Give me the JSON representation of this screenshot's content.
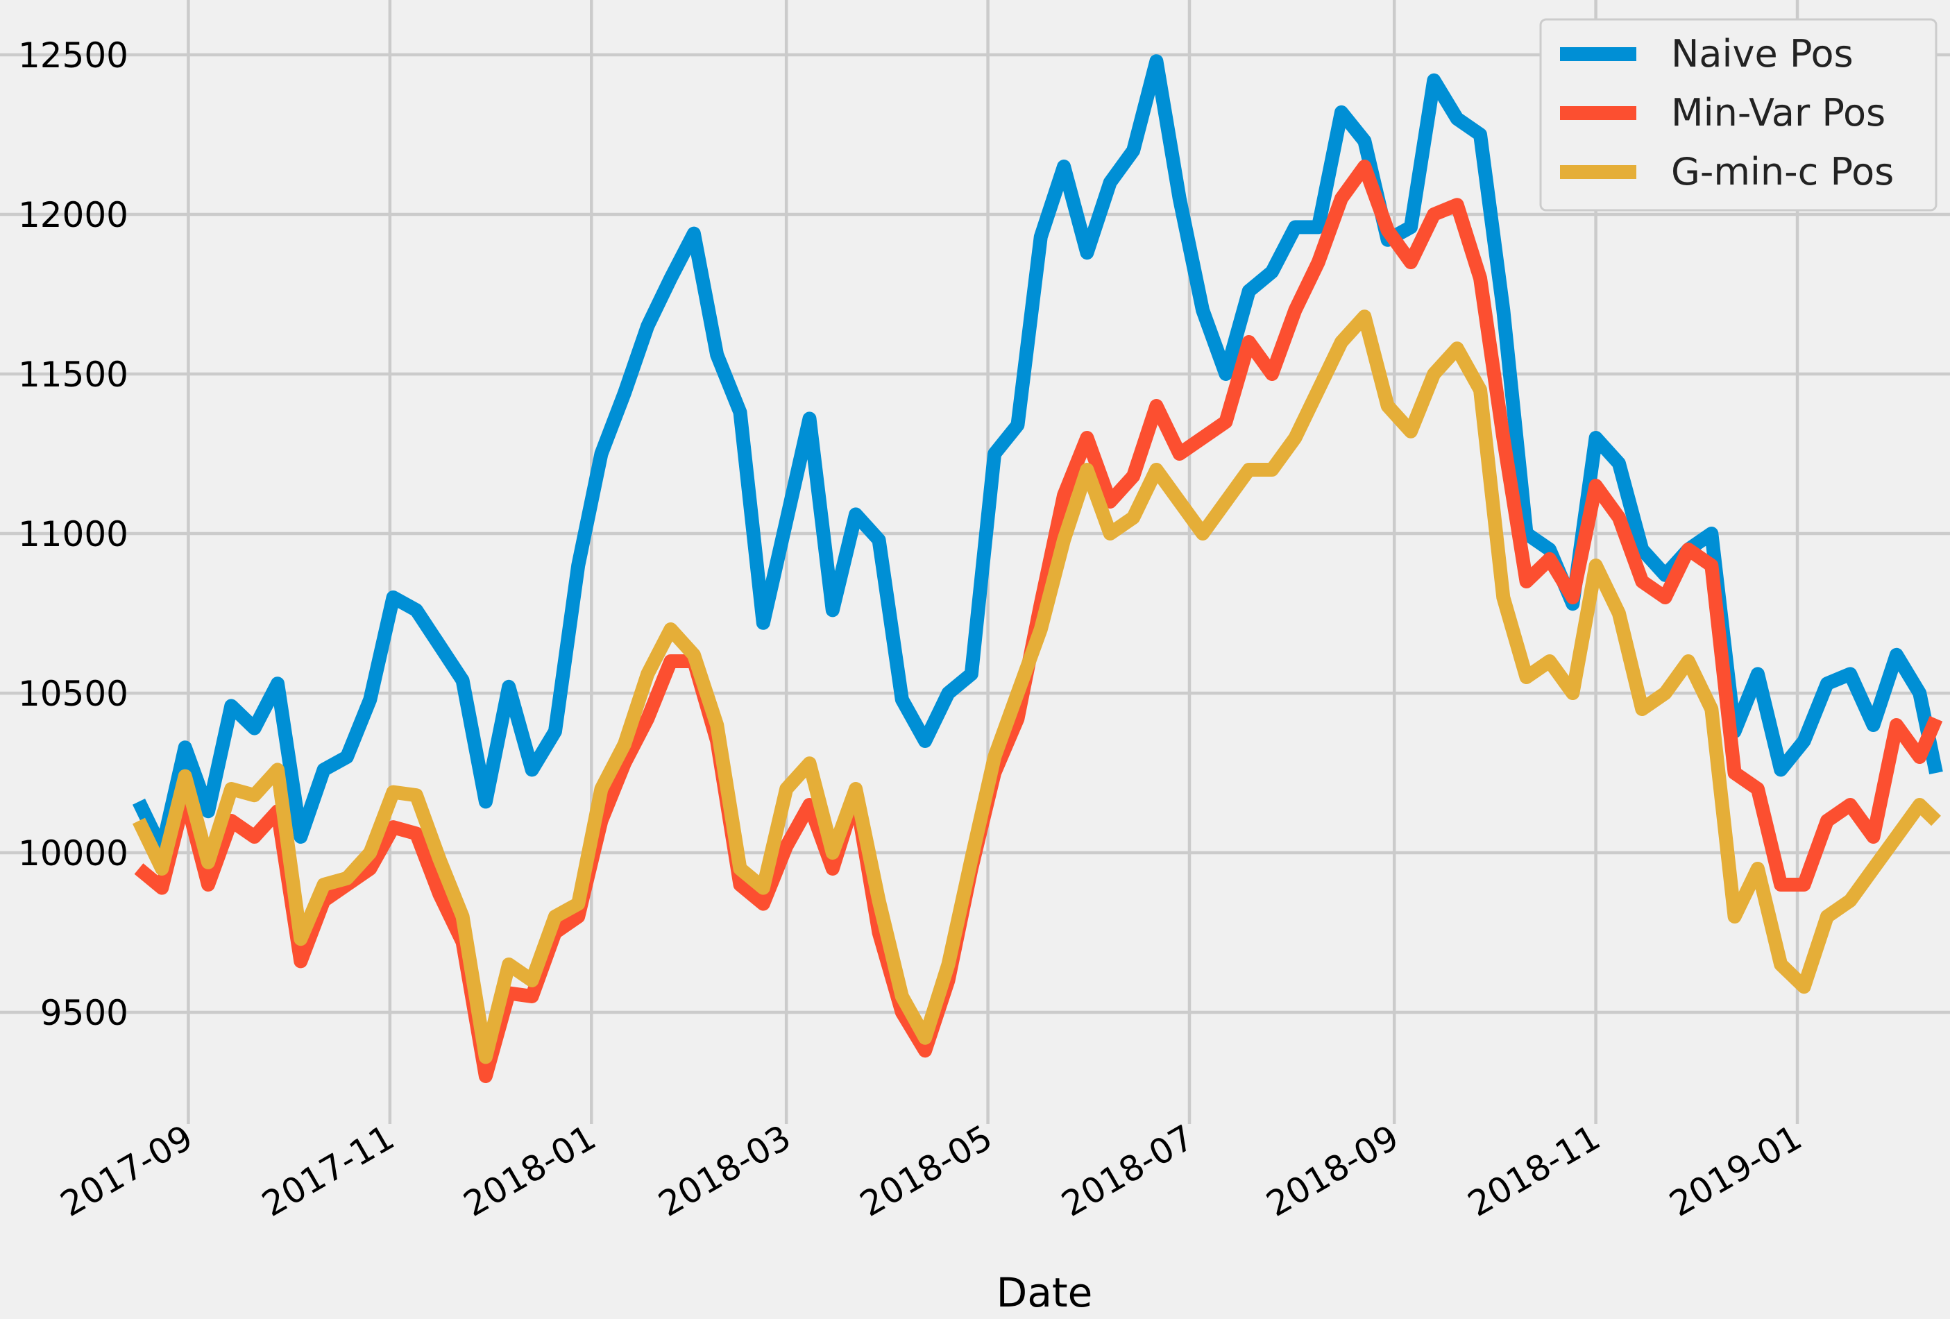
{
  "chart_data": {
    "type": "line",
    "title": "",
    "xlabel": "Date",
    "ylabel": "",
    "x_range": [
      "2017-08-17",
      "2019-02-12"
    ],
    "ylim": [
      9150,
      12650
    ],
    "grid": true,
    "legend_position": "top-right",
    "yticks": [
      9500,
      10000,
      10500,
      11000,
      11500,
      12000,
      12500
    ],
    "ytick_labels": [
      "9500",
      "10000",
      "10500",
      "11000",
      "11500",
      "12000",
      "12500"
    ],
    "xticks": [
      "2017-09-01",
      "2017-11-01",
      "2018-01-01",
      "2018-03-01",
      "2018-05-01",
      "2018-07-01",
      "2018-09-01",
      "2018-11-01",
      "2019-01-01"
    ],
    "xtick_labels": [
      "2017-09",
      "2017-11",
      "2018-01",
      "2018-03",
      "2018-05",
      "2018-07",
      "2018-09",
      "2018-11",
      "2019-01"
    ],
    "series": [
      {
        "name": "Naive Pos",
        "color": "#008fd5",
        "points": [
          [
            "2017-08-17",
            10160
          ],
          [
            "2017-08-24",
            10010
          ],
          [
            "2017-08-31",
            10330
          ],
          [
            "2017-09-07",
            10130
          ],
          [
            "2017-09-14",
            10460
          ],
          [
            "2017-09-21",
            10390
          ],
          [
            "2017-09-28",
            10530
          ],
          [
            "2017-10-05",
            10050
          ],
          [
            "2017-10-12",
            10260
          ],
          [
            "2017-10-19",
            10300
          ],
          [
            "2017-10-26",
            10480
          ],
          [
            "2017-11-02",
            10800
          ],
          [
            "2017-11-09",
            10760
          ],
          [
            "2017-11-16",
            10650
          ],
          [
            "2017-11-23",
            10540
          ],
          [
            "2017-11-30",
            10160
          ],
          [
            "2017-12-07",
            10520
          ],
          [
            "2017-12-14",
            10260
          ],
          [
            "2017-12-21",
            10380
          ],
          [
            "2017-12-28",
            10900
          ],
          [
            "2018-01-04",
            11250
          ],
          [
            "2018-01-11",
            11440
          ],
          [
            "2018-01-18",
            11650
          ],
          [
            "2018-01-25",
            11800
          ],
          [
            "2018-02-01",
            11940
          ],
          [
            "2018-02-08",
            11560
          ],
          [
            "2018-02-15",
            11380
          ],
          [
            "2018-02-22",
            10720
          ],
          [
            "2018-03-01",
            11040
          ],
          [
            "2018-03-08",
            11360
          ],
          [
            "2018-03-15",
            10760
          ],
          [
            "2018-03-22",
            11060
          ],
          [
            "2018-03-29",
            10980
          ],
          [
            "2018-04-05",
            10480
          ],
          [
            "2018-04-12",
            10350
          ],
          [
            "2018-04-19",
            10500
          ],
          [
            "2018-04-26",
            10560
          ],
          [
            "2018-05-03",
            11250
          ],
          [
            "2018-05-10",
            11340
          ],
          [
            "2018-05-17",
            11930
          ],
          [
            "2018-05-24",
            12150
          ],
          [
            "2018-05-31",
            11880
          ],
          [
            "2018-06-07",
            12100
          ],
          [
            "2018-06-14",
            12200
          ],
          [
            "2018-06-21",
            12480
          ],
          [
            "2018-06-28",
            12050
          ],
          [
            "2018-07-05",
            11700
          ],
          [
            "2018-07-12",
            11500
          ],
          [
            "2018-07-19",
            11760
          ],
          [
            "2018-07-26",
            11820
          ],
          [
            "2018-08-02",
            11960
          ],
          [
            "2018-08-09",
            11960
          ],
          [
            "2018-08-16",
            12320
          ],
          [
            "2018-08-23",
            12230
          ],
          [
            "2018-08-30",
            11920
          ],
          [
            "2018-09-06",
            11960
          ],
          [
            "2018-09-13",
            12420
          ],
          [
            "2018-09-20",
            12300
          ],
          [
            "2018-09-27",
            12250
          ],
          [
            "2018-10-04",
            11700
          ],
          [
            "2018-10-11",
            11000
          ],
          [
            "2018-10-18",
            10950
          ],
          [
            "2018-10-25",
            10780
          ],
          [
            "2018-11-01",
            11300
          ],
          [
            "2018-11-08",
            11220
          ],
          [
            "2018-11-15",
            10950
          ],
          [
            "2018-11-22",
            10870
          ],
          [
            "2018-11-29",
            10950
          ],
          [
            "2018-12-06",
            11000
          ],
          [
            "2018-12-13",
            10380
          ],
          [
            "2018-12-20",
            10560
          ],
          [
            "2018-12-27",
            10260
          ],
          [
            "2019-01-03",
            10350
          ],
          [
            "2019-01-10",
            10530
          ],
          [
            "2019-01-17",
            10560
          ],
          [
            "2019-01-24",
            10400
          ],
          [
            "2019-01-31",
            10620
          ],
          [
            "2019-02-07",
            10500
          ],
          [
            "2019-02-12",
            10250
          ]
        ]
      },
      {
        "name": "Min-Var Pos",
        "color": "#fc4f30",
        "points": [
          [
            "2017-08-17",
            9950
          ],
          [
            "2017-08-24",
            9890
          ],
          [
            "2017-08-31",
            10180
          ],
          [
            "2017-09-07",
            9900
          ],
          [
            "2017-09-14",
            10100
          ],
          [
            "2017-09-21",
            10050
          ],
          [
            "2017-09-28",
            10130
          ],
          [
            "2017-10-05",
            9660
          ],
          [
            "2017-10-12",
            9850
          ],
          [
            "2017-10-19",
            9900
          ],
          [
            "2017-10-26",
            9950
          ],
          [
            "2017-11-02",
            10080
          ],
          [
            "2017-11-09",
            10060
          ],
          [
            "2017-11-16",
            9870
          ],
          [
            "2017-11-23",
            9720
          ],
          [
            "2017-11-30",
            9300
          ],
          [
            "2017-12-07",
            9560
          ],
          [
            "2017-12-14",
            9550
          ],
          [
            "2017-12-21",
            9750
          ],
          [
            "2017-12-28",
            9800
          ],
          [
            "2018-01-04",
            10100
          ],
          [
            "2018-01-11",
            10280
          ],
          [
            "2018-01-18",
            10420
          ],
          [
            "2018-01-25",
            10600
          ],
          [
            "2018-02-01",
            10600
          ],
          [
            "2018-02-08",
            10350
          ],
          [
            "2018-02-15",
            9900
          ],
          [
            "2018-02-22",
            9840
          ],
          [
            "2018-03-01",
            10020
          ],
          [
            "2018-03-08",
            10150
          ],
          [
            "2018-03-15",
            9950
          ],
          [
            "2018-03-22",
            10180
          ],
          [
            "2018-03-29",
            9750
          ],
          [
            "2018-04-05",
            9500
          ],
          [
            "2018-04-12",
            9380
          ],
          [
            "2018-04-19",
            9600
          ],
          [
            "2018-04-26",
            9950
          ],
          [
            "2018-05-03",
            10250
          ],
          [
            "2018-05-10",
            10420
          ],
          [
            "2018-05-17",
            10780
          ],
          [
            "2018-05-24",
            11120
          ],
          [
            "2018-05-31",
            11300
          ],
          [
            "2018-06-07",
            11100
          ],
          [
            "2018-06-14",
            11180
          ],
          [
            "2018-06-21",
            11400
          ],
          [
            "2018-06-28",
            11250
          ],
          [
            "2018-07-05",
            11300
          ],
          [
            "2018-07-12",
            11350
          ],
          [
            "2018-07-19",
            11600
          ],
          [
            "2018-07-26",
            11500
          ],
          [
            "2018-08-02",
            11700
          ],
          [
            "2018-08-09",
            11850
          ],
          [
            "2018-08-16",
            12050
          ],
          [
            "2018-08-23",
            12150
          ],
          [
            "2018-08-30",
            11950
          ],
          [
            "2018-09-06",
            11850
          ],
          [
            "2018-09-13",
            12000
          ],
          [
            "2018-09-20",
            12030
          ],
          [
            "2018-09-27",
            11800
          ],
          [
            "2018-10-04",
            11300
          ],
          [
            "2018-10-11",
            10850
          ],
          [
            "2018-10-18",
            10920
          ],
          [
            "2018-10-25",
            10800
          ],
          [
            "2018-11-01",
            11150
          ],
          [
            "2018-11-08",
            11050
          ],
          [
            "2018-11-15",
            10850
          ],
          [
            "2018-11-22",
            10800
          ],
          [
            "2018-11-29",
            10950
          ],
          [
            "2018-12-06",
            10900
          ],
          [
            "2018-12-13",
            10250
          ],
          [
            "2018-12-20",
            10200
          ],
          [
            "2018-12-27",
            9900
          ],
          [
            "2019-01-03",
            9900
          ],
          [
            "2019-01-10",
            10100
          ],
          [
            "2019-01-17",
            10150
          ],
          [
            "2019-01-24",
            10050
          ],
          [
            "2019-01-31",
            10400
          ],
          [
            "2019-02-07",
            10300
          ],
          [
            "2019-02-12",
            10420
          ]
        ]
      },
      {
        "name": "G-min-c Pos",
        "color": "#e5ae38",
        "points": [
          [
            "2017-08-17",
            10100
          ],
          [
            "2017-08-24",
            9950
          ],
          [
            "2017-08-31",
            10240
          ],
          [
            "2017-09-07",
            9970
          ],
          [
            "2017-09-14",
            10200
          ],
          [
            "2017-09-21",
            10180
          ],
          [
            "2017-09-28",
            10260
          ],
          [
            "2017-10-05",
            9730
          ],
          [
            "2017-10-12",
            9900
          ],
          [
            "2017-10-19",
            9920
          ],
          [
            "2017-10-26",
            10000
          ],
          [
            "2017-11-02",
            10190
          ],
          [
            "2017-11-09",
            10180
          ],
          [
            "2017-11-16",
            9980
          ],
          [
            "2017-11-23",
            9800
          ],
          [
            "2017-11-30",
            9360
          ],
          [
            "2017-12-07",
            9650
          ],
          [
            "2017-12-14",
            9600
          ],
          [
            "2017-12-21",
            9800
          ],
          [
            "2017-12-28",
            9840
          ],
          [
            "2018-01-04",
            10200
          ],
          [
            "2018-01-11",
            10340
          ],
          [
            "2018-01-18",
            10560
          ],
          [
            "2018-01-25",
            10700
          ],
          [
            "2018-02-01",
            10620
          ],
          [
            "2018-02-08",
            10400
          ],
          [
            "2018-02-15",
            9950
          ],
          [
            "2018-02-22",
            9890
          ],
          [
            "2018-03-01",
            10200
          ],
          [
            "2018-03-08",
            10280
          ],
          [
            "2018-03-15",
            10000
          ],
          [
            "2018-03-22",
            10200
          ],
          [
            "2018-03-29",
            9850
          ],
          [
            "2018-04-05",
            9550
          ],
          [
            "2018-04-12",
            9420
          ],
          [
            "2018-04-19",
            9650
          ],
          [
            "2018-04-26",
            9980
          ],
          [
            "2018-05-03",
            10300
          ],
          [
            "2018-05-10",
            10500
          ],
          [
            "2018-05-17",
            10700
          ],
          [
            "2018-05-24",
            10980
          ],
          [
            "2018-05-31",
            11200
          ],
          [
            "2018-06-07",
            11000
          ],
          [
            "2018-06-14",
            11050
          ],
          [
            "2018-06-21",
            11200
          ],
          [
            "2018-06-28",
            11100
          ],
          [
            "2018-07-05",
            11000
          ],
          [
            "2018-07-12",
            11100
          ],
          [
            "2018-07-19",
            11200
          ],
          [
            "2018-07-26",
            11200
          ],
          [
            "2018-08-02",
            11300
          ],
          [
            "2018-08-09",
            11450
          ],
          [
            "2018-08-16",
            11600
          ],
          [
            "2018-08-23",
            11680
          ],
          [
            "2018-08-30",
            11400
          ],
          [
            "2018-09-06",
            11320
          ],
          [
            "2018-09-13",
            11500
          ],
          [
            "2018-09-20",
            11580
          ],
          [
            "2018-09-27",
            11450
          ],
          [
            "2018-10-04",
            10800
          ],
          [
            "2018-10-11",
            10550
          ],
          [
            "2018-10-18",
            10600
          ],
          [
            "2018-10-25",
            10500
          ],
          [
            "2018-11-01",
            10900
          ],
          [
            "2018-11-08",
            10750
          ],
          [
            "2018-11-15",
            10450
          ],
          [
            "2018-11-22",
            10500
          ],
          [
            "2018-11-29",
            10600
          ],
          [
            "2018-12-06",
            10450
          ],
          [
            "2018-12-13",
            9800
          ],
          [
            "2018-12-20",
            9950
          ],
          [
            "2018-12-27",
            9650
          ],
          [
            "2019-01-03",
            9580
          ],
          [
            "2019-01-10",
            9800
          ],
          [
            "2019-01-17",
            9850
          ],
          [
            "2019-01-24",
            9950
          ],
          [
            "2019-01-31",
            10050
          ],
          [
            "2019-02-07",
            10150
          ],
          [
            "2019-02-12",
            10100
          ]
        ]
      }
    ]
  }
}
